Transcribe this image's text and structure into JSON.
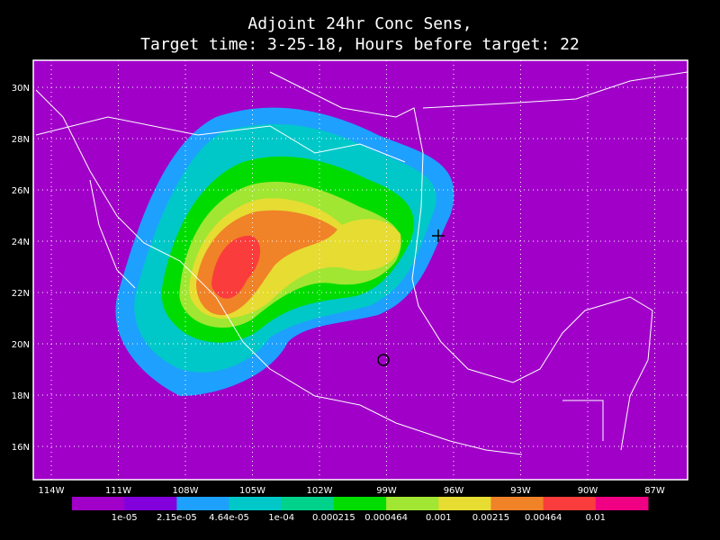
{
  "title": [
    "Adjoint 24hr Conc Sens,",
    "Target time: 3-25-18, Hours before target: 22"
  ],
  "lat_labels": [
    "30N",
    "28N",
    "26N",
    "24N",
    "22N",
    "20N",
    "18N",
    "16N"
  ],
  "lon_labels": [
    "114W",
    "111W",
    "108W",
    "105W",
    "102W",
    "99W",
    "96W",
    "93W",
    "90W",
    "87W"
  ],
  "colorbar": {
    "colors": [
      "#a000c8",
      "#8200dc",
      "#1ea0ff",
      "#00c8c8",
      "#00d28c",
      "#00dc00",
      "#a0e632",
      "#e6dc32",
      "#f08228",
      "#fa3c3c",
      "#f00082"
    ],
    "labels": [
      "1e-05",
      "2.15e-05",
      "4.64e-05",
      "1e-04",
      "0.000215",
      "0.000464",
      "0.001",
      "0.00215",
      "0.00464",
      "0.01"
    ]
  }
}
